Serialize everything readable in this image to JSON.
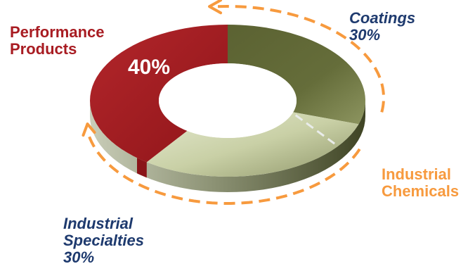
{
  "chart_data": {
    "type": "pie",
    "style": "3d-donut",
    "segments": [
      {
        "name": "Coatings",
        "value": 30,
        "color": "#5d6434"
      },
      {
        "name": "Industrial Specialties",
        "value": 30,
        "color": "#c6cda4"
      },
      {
        "name": "Performance Products",
        "value": 40,
        "color": "#a81c22"
      }
    ],
    "labels": {
      "performance_line1": "Performance",
      "performance_line2": "Products",
      "performance_value": "40%",
      "coatings_name": "Coatings",
      "coatings_value": "30%",
      "industrial_chemicals_line1": "Industrial",
      "industrial_chemicals_line2": "Chemicals",
      "industrial_specialties_line1": "Industrial",
      "industrial_specialties_line2": "Specialties",
      "industrial_specialties_value": "30%"
    },
    "industrial_chemicals_color": "#f79a3e"
  }
}
